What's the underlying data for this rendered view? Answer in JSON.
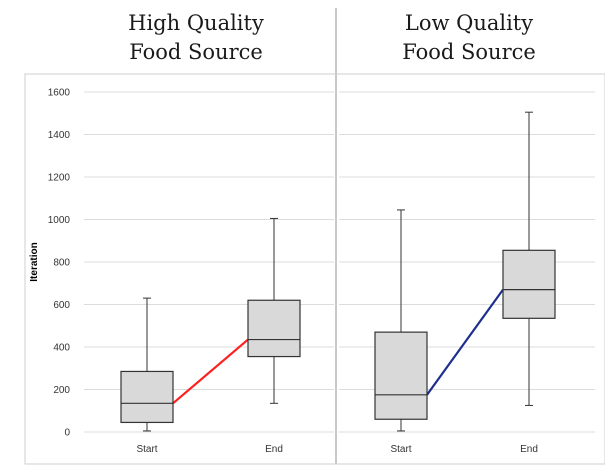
{
  "chart_data": {
    "type": "box",
    "ylabel": "Iteration",
    "ylim": [
      0,
      1600
    ],
    "yticks": [
      0,
      200,
      400,
      600,
      800,
      1000,
      1200,
      1400,
      1600
    ],
    "grid": true,
    "panels": [
      {
        "title_line1": "High Quality",
        "title_line2": "Food Source",
        "categories": [
          "Start",
          "End"
        ],
        "boxes": [
          {
            "min": 5,
            "q1": 45,
            "median": 135,
            "q3": 285,
            "max": 630
          },
          {
            "min": 135,
            "q1": 355,
            "median": 435,
            "q3": 620,
            "max": 1005
          }
        ],
        "median_line_color": "#ff1f1f"
      },
      {
        "title_line1": "Low Quality",
        "title_line2": "Food Source",
        "categories": [
          "Start",
          "End"
        ],
        "boxes": [
          {
            "min": 5,
            "q1": 60,
            "median": 175,
            "q3": 470,
            "max": 1045
          },
          {
            "min": 125,
            "q1": 535,
            "median": 670,
            "q3": 855,
            "max": 1505
          }
        ],
        "median_line_color": "#1f2f8f"
      }
    ],
    "box_fill": "#d9d9d9",
    "box_stroke": "#333333",
    "grid_color": "#dcdcdc"
  }
}
